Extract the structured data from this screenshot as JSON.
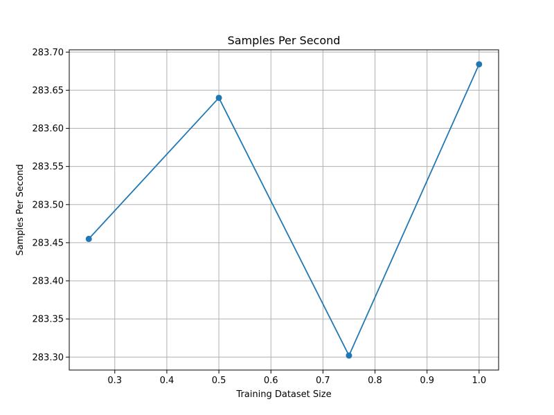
{
  "chart_data": {
    "type": "line",
    "title": "Samples Per Second",
    "xlabel": "Training Dataset Size",
    "ylabel": "Samples Per Second",
    "x": [
      0.25,
      0.5,
      0.75,
      1.0
    ],
    "series": [
      {
        "values": [
          283.455,
          283.64,
          283.302,
          283.684
        ],
        "color": "#1f77b4",
        "marker": "circle"
      }
    ],
    "xlim": [
      0.2125,
      1.0375
    ],
    "ylim": [
      283.283,
      283.703
    ],
    "x_ticks": [
      0.3,
      0.4,
      0.5,
      0.6,
      0.7,
      0.8,
      0.9,
      1.0
    ],
    "x_tick_labels": [
      "0.3",
      "0.4",
      "0.5",
      "0.6",
      "0.7",
      "0.8",
      "0.9",
      "1.0"
    ],
    "y_ticks": [
      283.3,
      283.35,
      283.4,
      283.45,
      283.5,
      283.55,
      283.6,
      283.65,
      283.7
    ],
    "y_tick_labels": [
      "283.30",
      "283.35",
      "283.40",
      "283.45",
      "283.50",
      "283.55",
      "283.60",
      "283.65",
      "283.70"
    ],
    "grid": true,
    "legend": false,
    "grid_color": "#b0b0b0"
  }
}
